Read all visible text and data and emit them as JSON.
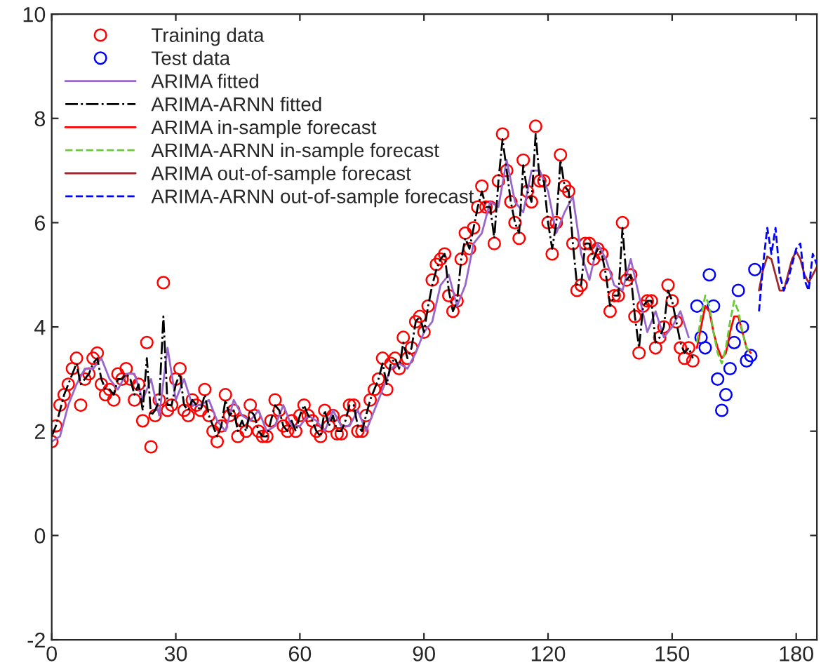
{
  "chart_data": {
    "type": "line",
    "xlim": [
      0,
      185
    ],
    "ylim": [
      -2,
      10
    ],
    "xticks": [
      0,
      30,
      60,
      90,
      120,
      150,
      180
    ],
    "yticks": [
      -2,
      0,
      2,
      4,
      6,
      8,
      10
    ],
    "grid": false,
    "legend": "top left",
    "series": [
      {
        "name": "Training data",
        "type": "scatter",
        "marker": "circle",
        "color": "#ff0000",
        "x": [
          0,
          1,
          2,
          3,
          4,
          5,
          6,
          7,
          8,
          9,
          10,
          11,
          12,
          13,
          14,
          15,
          16,
          17,
          18,
          19,
          20,
          21,
          22,
          23,
          24,
          25,
          26,
          27,
          28,
          29,
          30,
          31,
          32,
          33,
          34,
          35,
          36,
          37,
          38,
          39,
          40,
          41,
          42,
          43,
          44,
          45,
          46,
          47,
          48,
          49,
          50,
          51,
          52,
          53,
          54,
          55,
          56,
          57,
          58,
          59,
          60,
          61,
          62,
          63,
          64,
          65,
          66,
          67,
          68,
          69,
          70,
          71,
          72,
          73,
          74,
          75,
          76,
          77,
          78,
          79,
          80,
          81,
          82,
          83,
          84,
          85,
          86,
          87,
          88,
          89,
          90,
          91,
          92,
          93,
          94,
          95,
          96,
          97,
          98,
          99,
          100,
          101,
          102,
          103,
          104,
          105,
          106,
          107,
          108,
          109,
          110,
          111,
          112,
          113,
          114,
          115,
          116,
          117,
          118,
          119,
          120,
          121,
          122,
          123,
          124,
          125,
          126,
          127,
          128,
          129,
          130,
          131,
          132,
          133,
          134,
          135,
          136,
          137,
          138,
          139,
          140,
          141,
          142,
          143,
          144,
          145,
          146,
          147,
          148,
          149,
          150,
          151,
          152,
          153,
          154,
          155
        ],
        "values": [
          1.8,
          2.1,
          2.5,
          2.7,
          2.9,
          3.2,
          3.4,
          2.5,
          3.0,
          3.1,
          3.4,
          3.5,
          2.9,
          2.7,
          2.8,
          2.6,
          3.1,
          3.0,
          3.2,
          3.0,
          2.6,
          2.9,
          2.2,
          3.7,
          1.7,
          2.3,
          2.6,
          4.85,
          2.4,
          2.5,
          3.0,
          3.2,
          2.4,
          2.3,
          2.6,
          2.5,
          2.4,
          2.8,
          2.3,
          2.0,
          1.8,
          2.1,
          2.7,
          2.3,
          2.4,
          1.9,
          2.2,
          2.0,
          2.5,
          2.3,
          2.0,
          1.9,
          1.9,
          2.2,
          2.6,
          2.4,
          2.1,
          2.0,
          2.2,
          2.0,
          2.3,
          2.5,
          2.3,
          2.2,
          2.0,
          1.9,
          2.4,
          2.1,
          2.3,
          1.95,
          1.95,
          2.2,
          2.5,
          2.5,
          2.0,
          2.0,
          2.3,
          2.6,
          2.8,
          3.0,
          3.4,
          2.8,
          3.3,
          3.4,
          3.2,
          3.8,
          3.4,
          3.6,
          4.1,
          4.2,
          3.9,
          4.4,
          4.9,
          5.2,
          5.3,
          5.4,
          4.6,
          4.3,
          4.5,
          5.3,
          5.8,
          5.5,
          5.9,
          6.3,
          6.7,
          6.3,
          6.3,
          5.6,
          6.8,
          7.7,
          7.0,
          6.4,
          6.0,
          5.7,
          7.2,
          6.6,
          6.4,
          7.85,
          6.8,
          6.8,
          6.0,
          5.4,
          6.0,
          7.3,
          6.7,
          6.6,
          5.6,
          4.7,
          4.8,
          5.6,
          5.6,
          5.3,
          5.5,
          5.4,
          5.0,
          4.3,
          4.6,
          4.6,
          6.0,
          4.9,
          5.0,
          4.2,
          3.5,
          4.4,
          4.5,
          4.5,
          3.6,
          3.8,
          4.0,
          4.8,
          4.5,
          4.1,
          3.6,
          3.4,
          3.6,
          3.35
        ]
      },
      {
        "name": "Test data",
        "type": "scatter",
        "marker": "circle",
        "color": "#0000ff",
        "x": [
          156,
          157,
          158,
          159,
          160,
          161,
          162,
          163,
          164,
          165,
          166,
          167,
          168,
          169,
          170
        ],
        "values": [
          4.4,
          3.8,
          3.6,
          5.0,
          4.4,
          3.0,
          2.4,
          2.7,
          3.2,
          3.7,
          4.7,
          4.0,
          3.35,
          3.45,
          5.1
        ]
      },
      {
        "name": "ARIMA fitted",
        "marker": "none",
        "line_style": "solid",
        "color": "#9966cc",
        "x": [
          0,
          2,
          4,
          6,
          8,
          10,
          12,
          14,
          16,
          18,
          20,
          22,
          24,
          26,
          28,
          30,
          32,
          34,
          36,
          38,
          40,
          42,
          44,
          46,
          48,
          50,
          52,
          54,
          56,
          58,
          60,
          62,
          64,
          66,
          68,
          70,
          72,
          74,
          76,
          78,
          80,
          82,
          84,
          86,
          88,
          90,
          92,
          94,
          96,
          98,
          100,
          102,
          104,
          106,
          108,
          110,
          112,
          114,
          116,
          118,
          120,
          122,
          124,
          126,
          128,
          130,
          132,
          134,
          136,
          138,
          140,
          142,
          144,
          146,
          148,
          150,
          152,
          154
        ],
        "values": [
          1.8,
          1.9,
          2.5,
          2.9,
          3.2,
          3.2,
          3.4,
          3.0,
          2.8,
          3.1,
          3.1,
          2.6,
          3.0,
          2.3,
          3.6,
          2.6,
          3.0,
          2.5,
          2.5,
          2.6,
          2.2,
          2.0,
          2.6,
          2.3,
          2.2,
          2.4,
          2.0,
          2.1,
          2.5,
          2.1,
          2.1,
          2.3,
          2.2,
          2.0,
          2.4,
          2.1,
          2.1,
          2.4,
          2.0,
          2.4,
          2.8,
          3.2,
          3.3,
          3.2,
          3.5,
          3.9,
          4.1,
          4.8,
          5.0,
          4.4,
          4.8,
          5.6,
          5.8,
          6.4,
          6.3,
          7.2,
          6.4,
          6.2,
          7.0,
          7.0,
          6.6,
          5.8,
          6.2,
          6.5,
          5.4,
          4.9,
          5.6,
          5.3,
          4.8,
          4.7,
          5.3,
          4.6,
          3.9,
          4.3,
          3.8,
          4.0,
          4.3,
          3.8
        ]
      },
      {
        "name": "ARIMA-ARNN fitted",
        "marker": "none",
        "line_style": "dashdot",
        "color": "#000000",
        "x": [
          0,
          1,
          2,
          3,
          4,
          5,
          6,
          7,
          8,
          9,
          10,
          11,
          12,
          13,
          14,
          15,
          16,
          17,
          18,
          19,
          20,
          21,
          22,
          23,
          24,
          25,
          26,
          27,
          28,
          29,
          30,
          31,
          32,
          33,
          34,
          35,
          36,
          37,
          38,
          39,
          40,
          41,
          42,
          43,
          44,
          45,
          46,
          47,
          48,
          49,
          50,
          51,
          52,
          53,
          54,
          55,
          56,
          57,
          58,
          59,
          60,
          61,
          62,
          63,
          64,
          65,
          66,
          67,
          68,
          69,
          70,
          71,
          72,
          73,
          74,
          75,
          76,
          77,
          78,
          79,
          80,
          81,
          82,
          83,
          84,
          85,
          86,
          87,
          88,
          89,
          90,
          91,
          92,
          93,
          94,
          95,
          96,
          97,
          98,
          99,
          100,
          101,
          102,
          103,
          104,
          105,
          106,
          107,
          108,
          109,
          110,
          111,
          112,
          113,
          114,
          115,
          116,
          117,
          118,
          119,
          120,
          121,
          122,
          123,
          124,
          125,
          126,
          127,
          128,
          129,
          130,
          131,
          132,
          133,
          134,
          135,
          136,
          137,
          138,
          139,
          140,
          141,
          142,
          143,
          144,
          145,
          146,
          147,
          148,
          149,
          150,
          151,
          152,
          153,
          154,
          155
        ],
        "values": [
          1.9,
          2.1,
          2.4,
          2.7,
          2.9,
          3.1,
          3.3,
          2.9,
          3.0,
          3.1,
          3.3,
          3.4,
          3.0,
          2.8,
          2.8,
          2.7,
          3.0,
          3.0,
          3.1,
          3.0,
          2.7,
          2.9,
          2.4,
          3.4,
          2.3,
          2.4,
          2.6,
          4.2,
          2.5,
          2.5,
          2.9,
          3.1,
          2.5,
          2.4,
          2.6,
          2.5,
          2.4,
          2.7,
          2.3,
          2.1,
          1.9,
          2.1,
          2.6,
          2.3,
          2.4,
          2.0,
          2.2,
          2.0,
          2.4,
          2.3,
          2.0,
          1.9,
          1.9,
          2.2,
          2.5,
          2.4,
          2.1,
          2.0,
          2.2,
          2.0,
          2.3,
          2.5,
          2.3,
          2.2,
          2.0,
          1.9,
          2.4,
          2.1,
          2.3,
          2.0,
          2.0,
          2.2,
          2.5,
          2.5,
          2.1,
          2.0,
          2.3,
          2.6,
          2.8,
          3.0,
          3.3,
          2.9,
          3.3,
          3.4,
          3.2,
          3.7,
          3.4,
          3.6,
          4.1,
          4.2,
          3.9,
          4.4,
          4.8,
          5.1,
          5.3,
          5.4,
          4.7,
          4.3,
          4.5,
          5.3,
          5.7,
          5.5,
          5.9,
          6.3,
          6.6,
          6.3,
          6.3,
          5.7,
          6.8,
          7.6,
          7.0,
          6.4,
          6.0,
          5.8,
          7.1,
          6.6,
          6.4,
          7.7,
          6.8,
          6.8,
          6.0,
          5.5,
          6.0,
          7.2,
          6.7,
          6.6,
          5.6,
          4.8,
          4.8,
          5.6,
          5.6,
          5.3,
          5.5,
          5.4,
          5.0,
          4.4,
          4.6,
          4.6,
          5.9,
          4.9,
          5.0,
          4.2,
          3.6,
          4.4,
          4.5,
          4.5,
          3.7,
          3.8,
          4.0,
          4.7,
          4.5,
          4.1,
          3.7,
          3.5,
          3.6,
          3.4
        ]
      },
      {
        "name": "ARIMA in-sample forecast",
        "marker": "none",
        "line_style": "solid",
        "color": "#ff0000",
        "x": [
          156,
          157,
          158,
          159,
          160,
          161,
          162,
          163,
          164,
          165,
          166,
          167,
          168,
          169
        ],
        "values": [
          3.6,
          4.0,
          4.4,
          4.3,
          3.9,
          3.6,
          3.4,
          3.5,
          3.9,
          4.2,
          4.2,
          3.9,
          3.6,
          3.5
        ]
      },
      {
        "name": "ARIMA-ARNN in-sample forecast",
        "marker": "none",
        "line_style": "dashed",
        "color": "#66cc33",
        "x": [
          156,
          157,
          158,
          159,
          160,
          161,
          162,
          163,
          164,
          165,
          166,
          167,
          168,
          169
        ],
        "values": [
          3.7,
          4.2,
          4.6,
          4.4,
          3.9,
          3.5,
          3.3,
          3.6,
          4.1,
          4.5,
          4.3,
          3.9,
          3.6,
          3.5
        ]
      },
      {
        "name": "ARIMA out-of-sample forecast",
        "marker": "none",
        "line_style": "solid",
        "color": "#a0282d",
        "x": [
          171,
          172,
          173,
          174,
          175,
          176,
          177,
          178,
          179,
          180,
          181,
          182,
          183,
          184,
          185
        ],
        "values": [
          4.7,
          5.1,
          5.35,
          5.3,
          5.0,
          4.7,
          4.7,
          5.0,
          5.3,
          5.45,
          5.3,
          5.0,
          4.85,
          5.0,
          5.15
        ]
      },
      {
        "name": "ARIMA-ARNN out-of-sample forecast",
        "marker": "none",
        "line_style": "dashed",
        "color": "#0000ff",
        "x": [
          171,
          172,
          173,
          174,
          175,
          176,
          177,
          178,
          179,
          180,
          181,
          182,
          183,
          184,
          185
        ],
        "values": [
          4.3,
          5.2,
          5.9,
          5.4,
          5.9,
          5.0,
          4.7,
          4.9,
          5.2,
          5.5,
          5.6,
          4.9,
          4.7,
          5.4,
          5.2
        ]
      }
    ]
  }
}
